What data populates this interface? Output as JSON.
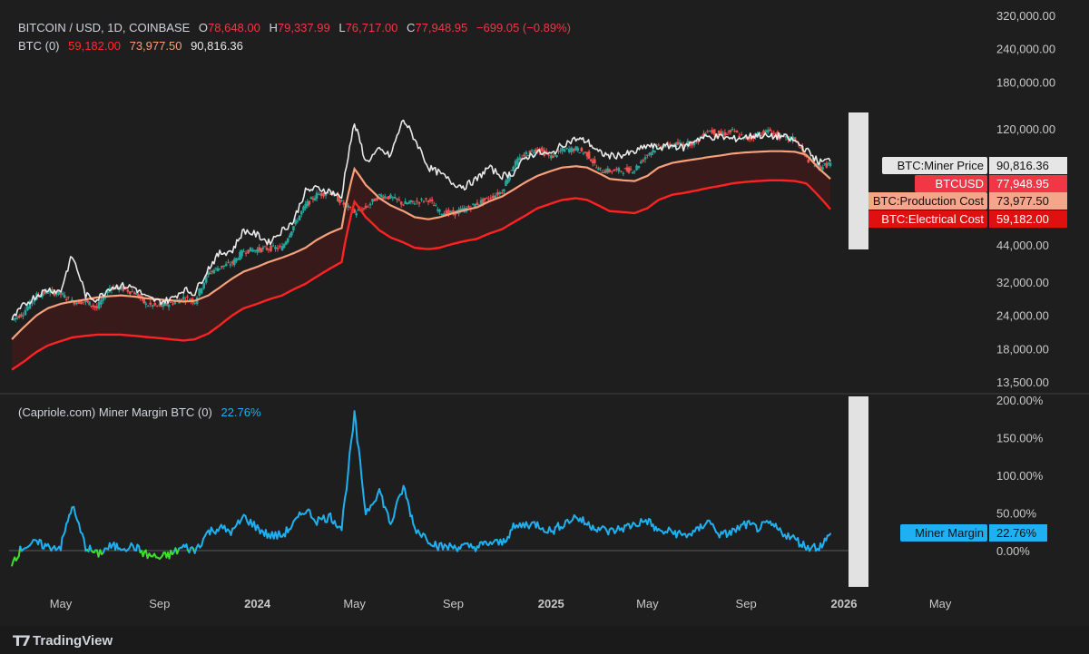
{
  "legend": {
    "symbol": "BITCOIN / USD, 1D, COINBASE",
    "o_label": "O",
    "o_value": "78,648.00",
    "h_label": "H",
    "h_value": "79,337.99",
    "l_label": "L",
    "l_value": "76,717.00",
    "c_label": "C",
    "c_value": "77,948.95",
    "change": "−699.05 (−0.89%)",
    "indicator": "BTC (0)",
    "ind_values": [
      "59,182.00",
      "73,977.50",
      "90,816.36"
    ]
  },
  "lower_legend": {
    "title": "(Capriole.com) Miner Margin BTC (0)",
    "value": "22.76%"
  },
  "price_labels": [
    {
      "name": "BTC:Miner Price",
      "value": "90,816.36"
    },
    {
      "name": "BTCUSD",
      "value": "77,948.95"
    },
    {
      "name": "BTC:Production Cost",
      "value": "73,977.50"
    },
    {
      "name": "BTC:Electrical Cost",
      "value": "59,182.00"
    }
  ],
  "margin_label": {
    "name": "Miner Margin",
    "value": "22.76%"
  },
  "colors": {
    "price": "#e8e8e8",
    "up": "#26a69a",
    "down": "#ef5350",
    "production": "#f7a07a",
    "electrical": "#ff2222",
    "band_fill": "#3a1a1a",
    "margin_pos": "#1eb0f0",
    "margin_neg": "#3de02a",
    "btcusd_badge": "#f23645",
    "production_badge": "#f5a58a",
    "electrical_badge": "#e01010",
    "white_badge": "#e6e6e6"
  },
  "brand": "TradingView",
  "chart_data": [
    {
      "type": "line",
      "title": "BITCOIN / USD, 1D, COINBASE",
      "y_scale": "log",
      "y_ticks": [
        "320,000.00",
        "240,000.00",
        "180,000.00",
        "120,000.00",
        "44,000.00",
        "32,000.00",
        "24,000.00",
        "18,000.00",
        "13,500.00"
      ],
      "x_ticks": [
        "May",
        "Sep",
        "2024",
        "May",
        "Sep",
        "2025",
        "May",
        "Sep",
        "2026",
        "May"
      ],
      "x": [
        "2023-03-01",
        "2023-03-15",
        "2023-04-01",
        "2023-04-15",
        "2023-05-01",
        "2023-05-15",
        "2023-06-01",
        "2023-06-15",
        "2023-07-01",
        "2023-07-15",
        "2023-08-01",
        "2023-08-15",
        "2023-09-01",
        "2023-09-15",
        "2023-10-01",
        "2023-10-15",
        "2023-11-01",
        "2023-11-15",
        "2023-12-01",
        "2023-12-15",
        "2024-01-01",
        "2024-01-15",
        "2024-02-01",
        "2024-02-15",
        "2024-03-01",
        "2024-03-15",
        "2024-04-01",
        "2024-04-15",
        "2024-05-01",
        "2024-05-15",
        "2024-06-01",
        "2024-06-15",
        "2024-07-01",
        "2024-07-15",
        "2024-08-01",
        "2024-08-15",
        "2024-09-01",
        "2024-09-15",
        "2024-10-01",
        "2024-10-15",
        "2024-11-01",
        "2024-11-15",
        "2024-12-01",
        "2024-12-15",
        "2025-01-01",
        "2025-01-15",
        "2025-02-01",
        "2025-02-15",
        "2025-03-01",
        "2025-03-15",
        "2025-04-01",
        "2025-04-15",
        "2025-05-01",
        "2025-05-15",
        "2025-06-01",
        "2025-06-15",
        "2025-07-01",
        "2025-07-15",
        "2025-08-01",
        "2025-08-15",
        "2025-09-01",
        "2025-09-15",
        "2025-10-01",
        "2025-10-15",
        "2025-11-01",
        "2025-11-15",
        "2025-12-01",
        "2025-12-15"
      ],
      "series": [
        {
          "name": "BTC:Miner Price",
          "values": [
            23000,
            26000,
            28500,
            30000,
            29500,
            40000,
            28500,
            27500,
            30500,
            31000,
            30500,
            28000,
            27000,
            27500,
            30000,
            29000,
            36000,
            41000,
            42000,
            50000,
            48000,
            45000,
            50000,
            54000,
            70000,
            72000,
            70000,
            66000,
            125000,
            90000,
            100000,
            95000,
            130000,
            110000,
            86000,
            82000,
            75000,
            73000,
            78000,
            86000,
            80000,
            82000,
            94000,
            98000,
            96000,
            105000,
            110000,
            108000,
            98000,
            95000,
            96000,
            98000,
            104000,
            102000,
            104000,
            102000,
            110000,
            112000,
            112000,
            110000,
            112000,
            114000,
            112000,
            113000,
            108000,
            100000,
            90000,
            92000
          ]
        },
        {
          "name": "BTCUSD",
          "values": [
            23000,
            24500,
            28500,
            29500,
            28800,
            27000,
            27000,
            25500,
            30500,
            30300,
            29200,
            26300,
            25900,
            26600,
            27900,
            27100,
            34600,
            36400,
            37700,
            41900,
            42300,
            42800,
            43000,
            51800,
            62000,
            68000,
            69500,
            63500,
            58000,
            61000,
            67500,
            66500,
            62700,
            63800,
            65300,
            58500,
            58000,
            60000,
            63000,
            66000,
            70000,
            88000,
            97000,
            101000,
            94000,
            100000,
            101000,
            96500,
            84000,
            83500,
            84000,
            84500,
            96500,
            103500,
            104500,
            105500,
            107000,
            119000,
            114000,
            118000,
            109000,
            115000,
            118000,
            111000,
            110000,
            93000,
            86000,
            89000
          ]
        },
        {
          "name": "BTC:Production Cost",
          "values": [
            19500,
            21500,
            24000,
            25500,
            26500,
            27000,
            27500,
            28000,
            28300,
            28500,
            28200,
            27800,
            27500,
            27300,
            27000,
            27200,
            28500,
            30500,
            33000,
            35000,
            36500,
            38000,
            39500,
            41000,
            43000,
            46000,
            49000,
            51000,
            85000,
            74000,
            66000,
            62000,
            59000,
            56000,
            55000,
            56000,
            58000,
            59500,
            61000,
            64000,
            67000,
            71000,
            76000,
            80000,
            83500,
            86000,
            87000,
            86000,
            82000,
            78000,
            77000,
            76500,
            80000,
            86000,
            89500,
            91000,
            92500,
            94000,
            95500,
            97000,
            98000,
            98500,
            99000,
            99000,
            98500,
            96000,
            85000,
            78000
          ]
        },
        {
          "name": "BTC:Electrical Cost",
          "values": [
            15000,
            16000,
            17500,
            18500,
            19200,
            19800,
            20100,
            20300,
            20300,
            20300,
            20100,
            19900,
            19700,
            19500,
            19300,
            19500,
            20500,
            22000,
            24000,
            25500,
            26500,
            27500,
            28500,
            30000,
            31500,
            33500,
            36000,
            38000,
            64000,
            56000,
            50000,
            47000,
            45000,
            43000,
            42500,
            43000,
            44500,
            45500,
            46500,
            48500,
            50500,
            53500,
            57000,
            60500,
            63000,
            65000,
            66000,
            65000,
            62000,
            59000,
            58500,
            58000,
            60500,
            65000,
            68000,
            69000,
            70500,
            72000,
            73500,
            75000,
            76000,
            76500,
            77000,
            77000,
            76500,
            75000,
            67000,
            60000
          ]
        }
      ]
    },
    {
      "type": "line",
      "title": "(Capriole.com) Miner Margin BTC (0)",
      "y_ticks": [
        "200.00%",
        "150.00%",
        "100.00%",
        "50.00%",
        "0.00%"
      ],
      "ylim": [
        -25,
        200
      ],
      "series": [
        {
          "name": "Miner Margin",
          "values": [
            -15,
            5,
            10,
            5,
            5,
            60,
            5,
            -5,
            5,
            5,
            5,
            -5,
            -10,
            -5,
            5,
            0,
            25,
            30,
            25,
            45,
            30,
            20,
            20,
            35,
            55,
            40,
            45,
            30,
            180,
            50,
            80,
            35,
            85,
            30,
            15,
            5,
            5,
            5,
            5,
            10,
            10,
            30,
            35,
            35,
            25,
            35,
            45,
            35,
            30,
            25,
            30,
            35,
            40,
            25,
            25,
            20,
            25,
            40,
            20,
            25,
            35,
            30,
            35,
            25,
            15,
            5,
            5,
            20
          ]
        }
      ]
    }
  ]
}
